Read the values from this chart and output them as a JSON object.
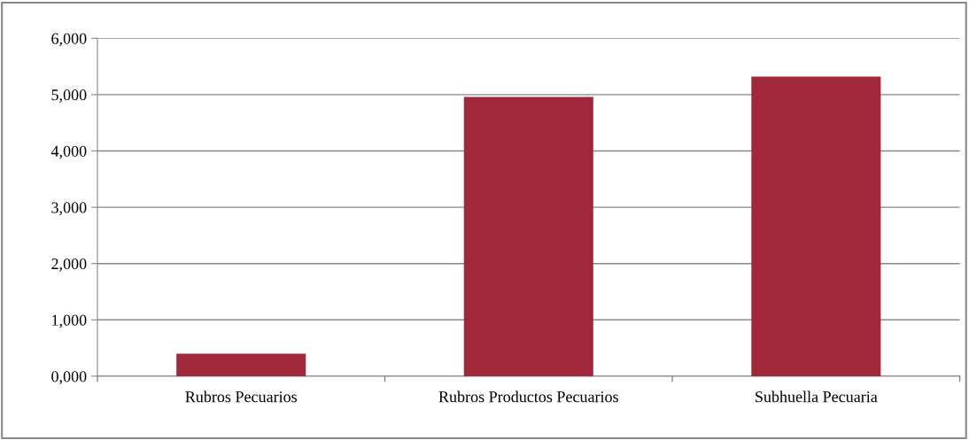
{
  "chart_data": {
    "type": "bar",
    "categories": [
      "Rubros Pecuarios",
      "Rubros Productos Pecuarios",
      "Subhuella Pecuaria"
    ],
    "values": [
      400,
      4960,
      5320
    ],
    "color": "#a0283a",
    "ylim": [
      0,
      6000
    ],
    "yticks": [
      {
        "value": 0,
        "label": "0,000"
      },
      {
        "value": 1000,
        "label": "1,000"
      },
      {
        "value": 2000,
        "label": "2,000"
      },
      {
        "value": 3000,
        "label": "3,000"
      },
      {
        "value": 4000,
        "label": "4,000"
      },
      {
        "value": 5000,
        "label": "5,000"
      },
      {
        "value": 6000,
        "label": "6,000"
      }
    ],
    "grid": "y"
  }
}
